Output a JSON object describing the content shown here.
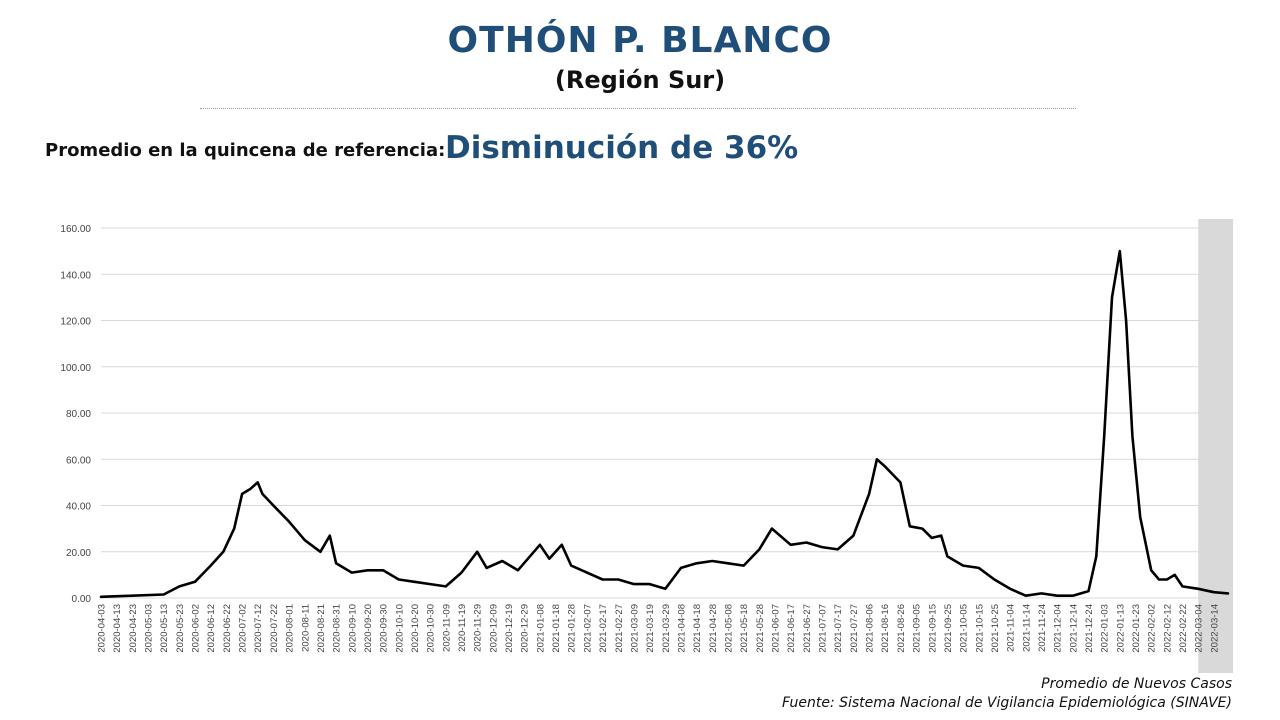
{
  "header": {
    "title": "OTHÓN P. BLANCO",
    "subtitle": "(Región Sur)",
    "reference_label": "Promedio en la quincena de referencia:",
    "reference_value": "Disminución de 36%"
  },
  "caption": {
    "series_label": "Promedio de Nuevos Casos",
    "source": "Fuente: Sistema Nacional de Vigilancia Epidemiológica (SINAVE)"
  },
  "colors": {
    "title": "#1f4e79",
    "line": "#000000",
    "grid": "#d9d9d9",
    "shade": "#d9d9d9"
  },
  "chart_data": {
    "type": "line",
    "ylim": [
      0,
      160
    ],
    "yticks": [
      "0.00",
      "20.00",
      "40.00",
      "60.00",
      "80.00",
      "100.00",
      "120.00",
      "140.00",
      "160.00"
    ],
    "xlim": [
      "2020-04-03",
      "2022-03-23"
    ],
    "shaded_region": [
      "2022-03-04",
      "2022-03-27"
    ],
    "grid": "horizontal",
    "xtick_labels": [
      "2020-04-03",
      "2020-04-13",
      "2020-04-23",
      "2020-05-03",
      "2020-05-13",
      "2020-05-23",
      "2020-06-02",
      "2020-06-12",
      "2020-06-22",
      "2020-07-02",
      "2020-07-12",
      "2020-07-22",
      "2020-08-01",
      "2020-08-11",
      "2020-08-21",
      "2020-08-31",
      "2020-09-10",
      "2020-09-20",
      "2020-09-30",
      "2020-10-10",
      "2020-10-20",
      "2020-10-30",
      "2020-11-09",
      "2020-11-19",
      "2020-11-29",
      "2020-12-09",
      "2020-12-19",
      "2020-12-29",
      "2021-01-08",
      "2021-01-18",
      "2021-01-28",
      "2021-02-07",
      "2021-02-17",
      "2021-02-27",
      "2021-03-09",
      "2021-03-19",
      "2021-03-29",
      "2021-04-08",
      "2021-04-18",
      "2021-04-28",
      "2021-05-08",
      "2021-05-18",
      "2021-05-28",
      "2021-06-07",
      "2021-06-17",
      "2021-06-27",
      "2021-07-07",
      "2021-07-17",
      "2021-07-27",
      "2021-08-06",
      "2021-08-16",
      "2021-08-26",
      "2021-09-05",
      "2021-09-15",
      "2021-09-25",
      "2021-10-05",
      "2021-10-15",
      "2021-10-25",
      "2021-11-04",
      "2021-11-14",
      "2021-11-24",
      "2021-12-04",
      "2021-12-14",
      "2021-12-24",
      "2022-01-03",
      "2022-01-13",
      "2022-01-23",
      "2022-02-02",
      "2022-02-12",
      "2022-02-22",
      "2022-03-04",
      "2022-03-14"
    ],
    "series": [
      {
        "x": [
          "2020-04-03",
          "2020-04-23",
          "2020-05-13",
          "2020-05-23",
          "2020-06-02",
          "2020-06-12",
          "2020-06-20",
          "2020-06-27",
          "2020-07-02",
          "2020-07-07",
          "2020-07-12",
          "2020-07-15",
          "2020-07-22",
          "2020-08-01",
          "2020-08-11",
          "2020-08-21",
          "2020-08-27",
          "2020-08-31",
          "2020-09-10",
          "2020-09-20",
          "2020-09-30",
          "2020-10-10",
          "2020-10-20",
          "2020-10-30",
          "2020-11-09",
          "2020-11-19",
          "2020-11-29",
          "2020-12-05",
          "2020-12-15",
          "2020-12-25",
          "2021-01-08",
          "2021-01-14",
          "2021-01-22",
          "2021-01-28",
          "2021-02-07",
          "2021-02-17",
          "2021-02-27",
          "2021-03-09",
          "2021-03-19",
          "2021-03-29",
          "2021-04-08",
          "2021-04-18",
          "2021-04-28",
          "2021-05-08",
          "2021-05-18",
          "2021-05-28",
          "2021-06-05",
          "2021-06-17",
          "2021-06-27",
          "2021-07-07",
          "2021-07-17",
          "2021-07-27",
          "2021-08-06",
          "2021-08-11",
          "2021-08-16",
          "2021-08-26",
          "2021-09-01",
          "2021-09-09",
          "2021-09-15",
          "2021-09-21",
          "2021-09-25",
          "2021-10-05",
          "2021-10-15",
          "2021-10-25",
          "2021-11-04",
          "2021-11-14",
          "2021-11-24",
          "2021-12-04",
          "2021-12-14",
          "2021-12-24",
          "2021-12-29",
          "2022-01-03",
          "2022-01-08",
          "2022-01-13",
          "2022-01-17",
          "2022-01-21",
          "2022-01-26",
          "2022-02-02",
          "2022-02-07",
          "2022-02-12",
          "2022-02-17",
          "2022-02-22",
          "2022-03-04",
          "2022-03-14",
          "2022-03-23"
        ],
        "y": [
          0.5,
          1,
          1.5,
          5,
          7,
          14,
          20,
          30,
          45,
          47,
          50,
          45,
          40,
          33,
          25,
          20,
          27,
          15,
          11,
          12,
          12,
          8,
          7,
          6,
          5,
          11,
          20,
          13,
          16,
          12,
          23,
          17,
          23,
          14,
          11,
          8,
          8,
          6,
          6,
          4,
          13,
          15,
          16,
          15,
          14,
          21,
          30,
          23,
          24,
          22,
          21,
          27,
          45,
          60,
          57,
          50,
          31,
          30,
          26,
          27,
          18,
          14,
          13,
          8,
          4,
          1,
          2,
          1,
          1,
          3,
          18,
          70,
          130,
          150,
          120,
          70,
          35,
          12,
          8,
          8,
          10,
          5,
          4,
          2.5,
          2
        ]
      }
    ]
  }
}
